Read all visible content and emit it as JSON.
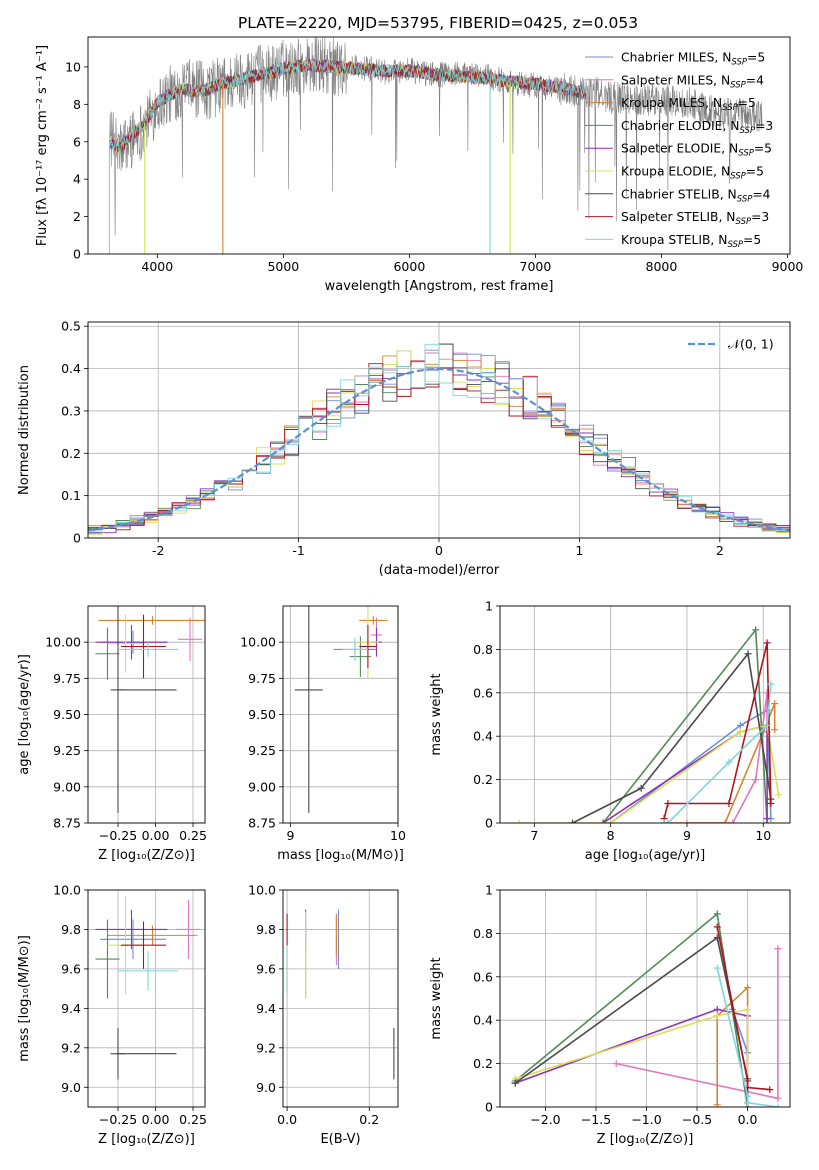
{
  "figure": {
    "suptitle": "PLATE=2220, MJD=53795, FIBERID=0425, z=0.053",
    "colors": {
      "Chabrier MILES": "#6f8fd0",
      "Salpeter MILES": "#e377c2",
      "Kroupa MILES": "#d98330",
      "Chabrier ELODIE": "#528a58",
      "Salpeter ELODIE": "#9131b8",
      "Kroupa ELODIE": "#d8e05a",
      "Chabrier STELIB": "#4a4a4a",
      "Salpeter STELIB": "#b0141e",
      "Kroupa STELIB": "#7ed6dc",
      "data": "#808080",
      "normal": "#5b8fd6"
    }
  },
  "chart_data": [
    {
      "id": "spectrum",
      "type": "line",
      "xlabel": "wavelength [Angstrom, rest frame]",
      "ylabel": "Flux [fλ 10⁻¹⁷ erg cm⁻² s⁻¹ A⁻¹]",
      "xlim": [
        3450,
        9020
      ],
      "ylim": [
        0,
        11.6
      ],
      "xticks": [
        4000,
        5000,
        6000,
        7000,
        8000,
        9000
      ],
      "yticks": [
        0,
        2,
        4,
        6,
        8,
        10
      ],
      "legend_position": "top-right",
      "legend": [
        {
          "label": "Chabrier MILES, N",
          "sub": "SSP",
          "tail": "=5"
        },
        {
          "label": "Salpeter MILES, N",
          "sub": "SSP",
          "tail": "=4"
        },
        {
          "label": "Kroupa MILES, N",
          "sub": "SSP",
          "tail": "=5"
        },
        {
          "label": "Chabrier ELODIE, N",
          "sub": "SSP",
          "tail": "=3"
        },
        {
          "label": "Salpeter ELODIE, N",
          "sub": "SSP",
          "tail": "=5"
        },
        {
          "label": "Kroupa ELODIE, N",
          "sub": "SSP",
          "tail": "=5"
        },
        {
          "label": "Chabrier STELIB, N",
          "sub": "SSP",
          "tail": "=4"
        },
        {
          "label": "Salpeter STELIB, N",
          "sub": "SSP",
          "tail": "=3"
        },
        {
          "label": "Kroupa STELIB, N",
          "sub": "SSP",
          "tail": "=5"
        }
      ],
      "data_envelope": {
        "x": [
          3620,
          3700,
          3800,
          3900,
          4000,
          4100,
          4200,
          4300,
          4400,
          4500,
          4600,
          4700,
          4800,
          4900,
          5000,
          5200,
          5400,
          5600,
          5800,
          6000,
          6200,
          6400,
          6600,
          6800,
          7000,
          7200,
          7400,
          7600,
          7800,
          8000,
          8200,
          8400,
          8600,
          8800
        ],
        "y": [
          6.3,
          5.5,
          6.2,
          6.8,
          8.0,
          8.5,
          8.9,
          8.8,
          8.7,
          9.0,
          9.2,
          9.4,
          9.6,
          9.6,
          9.9,
          10.1,
          10.0,
          10.0,
          9.7,
          9.8,
          9.6,
          9.6,
          9.5,
          9.2,
          9.0,
          8.8,
          8.7,
          8.4,
          8.3,
          8.2,
          8.1,
          7.6,
          7.5,
          7.4
        ]
      },
      "model_envelope": {
        "x": [
          3620,
          3700,
          3800,
          3900,
          4000,
          4100,
          4200,
          4300,
          4400,
          4500,
          4600,
          4700,
          4800,
          4900,
          5000,
          5200,
          5400,
          5600,
          5800,
          6000,
          6200,
          6400,
          6600,
          6800,
          7000,
          7200,
          7400
        ],
        "y": [
          6.0,
          5.6,
          6.4,
          7.0,
          8.1,
          8.5,
          8.8,
          8.7,
          8.8,
          9.1,
          9.2,
          9.4,
          9.6,
          9.7,
          9.9,
          10.1,
          10.0,
          9.9,
          9.8,
          9.8,
          9.6,
          9.5,
          9.4,
          9.2,
          9.1,
          8.9,
          8.6
        ]
      },
      "model_dropouts": [
        {
          "model": "Kroupa MILES",
          "x": 4520
        },
        {
          "model": "Kroupa STELIB",
          "x": 6640
        },
        {
          "model": "Kroupa ELODIE",
          "x": 6800
        },
        {
          "model": "Kroupa ELODIE",
          "x": 3900
        },
        {
          "model": "Kroupa STELIB",
          "x": 3620
        }
      ]
    },
    {
      "id": "residuals",
      "type": "line",
      "xlabel": "(data-model)/error",
      "ylabel": "Normed distribution",
      "xlim": [
        -2.5,
        2.5
      ],
      "ylim": [
        0,
        0.51
      ],
      "xticks": [
        -2,
        -1,
        0,
        1,
        2
      ],
      "yticks": [
        0.0,
        0.1,
        0.2,
        0.3,
        0.4,
        0.5
      ],
      "grid": true,
      "legend_position": "top-right",
      "legend_label": "𝒩(0, 1)",
      "series_note": "step histograms, bin width 0.1 from -2.5 to 2.5, one per model; dashed curve = standard normal"
    },
    {
      "id": "Z_age",
      "type": "scatter",
      "xlabel": "Z [log₁₀(Z/Z⊙)]",
      "ylabel": "age  [log₁₀(age/yr)]",
      "xlim": [
        -0.45,
        0.33
      ],
      "ylim": [
        8.75,
        10.25
      ],
      "xticks": [
        -0.25,
        0.0,
        0.25
      ],
      "xticklabels": [
        "−0.25",
        "0.00",
        "0.25"
      ],
      "yticks": [
        8.75,
        9.0,
        9.25,
        9.5,
        9.75,
        10.0
      ],
      "yticklabels": [
        "8.75",
        "9.00",
        "9.25",
        "9.50",
        "9.75",
        "10.00"
      ],
      "grid": true,
      "points": [
        {
          "model": "Chabrier MILES",
          "x": -0.15,
          "xerr": 0.22,
          "y": 10.0,
          "yerr": 0.08
        },
        {
          "model": "Salpeter MILES",
          "x": 0.23,
          "xerr": 0.08,
          "y": 10.02,
          "yerr": 0.15
        },
        {
          "model": "Kroupa MILES",
          "x": -0.02,
          "xerr": 0.36,
          "y": 10.15,
          "yerr": 0.03
        },
        {
          "model": "Chabrier ELODIE",
          "x": -0.32,
          "xerr": 0.08,
          "y": 9.92,
          "yerr": 0.18
        },
        {
          "model": "Salpeter ELODIE",
          "x": -0.16,
          "xerr": 0.24,
          "y": 10.0,
          "yerr": 0.12
        },
        {
          "model": "Kroupa ELODIE",
          "x": -0.2,
          "xerr": 0.12,
          "y": 9.99,
          "yerr": 0.2
        },
        {
          "model": "Chabrier STELIB",
          "x": -0.25,
          "xerr": 0.05,
          "y": 9.67,
          "yerr": 0.85
        },
        {
          "model": "Chabrier STELIB",
          "x": -0.06,
          "xerr": 0.2,
          "y": 9.67,
          "yerr": 0.0
        },
        {
          "model": "Salpeter STELIB",
          "x": -0.08,
          "xerr": 0.15,
          "y": 9.97,
          "yerr": 0.22
        },
        {
          "model": "Kroupa STELIB",
          "x": -0.05,
          "xerr": 0.2,
          "y": 9.95,
          "yerr": 0.05
        }
      ]
    },
    {
      "id": "mass_age",
      "type": "scatter",
      "xlabel": "mass [log₁₀(M/M⊙)]",
      "xlim": [
        8.93,
        10.0
      ],
      "ylim": [
        8.75,
        10.25
      ],
      "xticks": [
        9,
        10
      ],
      "yticks": [
        8.75,
        9.0,
        9.25,
        9.5,
        9.75,
        10.0
      ],
      "yticklabels": [
        "8.75",
        "9.00",
        "9.25",
        "9.50",
        "9.75",
        "10.00"
      ],
      "grid": true,
      "points": [
        {
          "model": "Chabrier MILES",
          "x": 9.6,
          "xerr": 0.2,
          "y": 9.95,
          "yerr": 0.05
        },
        {
          "model": "Salpeter MILES",
          "x": 9.8,
          "xerr": 0.05,
          "y": 10.05,
          "yerr": 0.12
        },
        {
          "model": "Kroupa MILES",
          "x": 9.77,
          "xerr": 0.13,
          "y": 10.15,
          "yerr": 0.03
        },
        {
          "model": "Chabrier ELODIE",
          "x": 9.65,
          "xerr": 0.1,
          "y": 9.9,
          "yerr": 0.14
        },
        {
          "model": "Salpeter ELODIE",
          "x": 9.8,
          "xerr": 0.05,
          "y": 10.0,
          "yerr": 0.1
        },
        {
          "model": "Kroupa ELODIE",
          "x": 9.72,
          "xerr": 0.1,
          "y": 10.0,
          "yerr": 0.25
        },
        {
          "model": "Chabrier STELIB",
          "x": 9.17,
          "xerr": 0.13,
          "y": 9.67,
          "yerr": 0.85
        },
        {
          "model": "Salpeter STELIB",
          "x": 9.72,
          "xerr": 0.08,
          "y": 9.97,
          "yerr": 0.15
        },
        {
          "model": "Kroupa STELIB",
          "x": 9.6,
          "xerr": 0.12,
          "y": 9.95,
          "yerr": 0.08
        }
      ]
    },
    {
      "id": "weight_age",
      "type": "line",
      "xlabel": "age  [log₁₀(age/yr)]",
      "ylabel": "mass weight",
      "xlim": [
        6.55,
        10.35
      ],
      "ylim": [
        0,
        1.0
      ],
      "xticks": [
        7,
        8,
        9,
        10
      ],
      "yticks": [
        0.0,
        0.2,
        0.4,
        0.6,
        0.8,
        1.0
      ],
      "grid": true,
      "series": [
        {
          "model": "Chabrier MILES",
          "x": [
            8.0,
            9.7,
            10.05,
            10.1
          ],
          "y": [
            0.0,
            0.45,
            0.52,
            0.02
          ]
        },
        {
          "model": "Salpeter MILES",
          "x": [
            9.0,
            9.6,
            9.9,
            10.05,
            10.05
          ],
          "y": [
            0.0,
            0.0,
            0.2,
            0.6,
            0.42
          ]
        },
        {
          "model": "Kroupa MILES",
          "x": [
            8.7,
            9.5,
            10.0,
            10.15,
            10.15
          ],
          "y": [
            0.0,
            0.0,
            0.42,
            0.55,
            0.43
          ]
        },
        {
          "model": "Chabrier ELODIE",
          "x": [
            7.9,
            9.9,
            10.05
          ],
          "y": [
            0.0,
            0.89,
            0.0
          ]
        },
        {
          "model": "Salpeter ELODIE",
          "x": [
            7.9,
            9.7,
            10.05,
            10.05
          ],
          "y": [
            0.0,
            0.42,
            0.45,
            0.02
          ]
        },
        {
          "model": "Kroupa ELODIE",
          "x": [
            6.8,
            8.0,
            9.7,
            10.05,
            10.2
          ],
          "y": [
            0.0,
            0.0,
            0.42,
            0.45,
            0.13
          ]
        },
        {
          "model": "Chabrier STELIB",
          "x": [
            7.5,
            8.4,
            9.8,
            10.1
          ],
          "y": [
            0.0,
            0.16,
            0.78,
            0.11
          ]
        },
        {
          "model": "Salpeter STELIB",
          "x": [
            8.7,
            8.75,
            9.55,
            10.05,
            10.1
          ],
          "y": [
            0.02,
            0.09,
            0.09,
            0.83,
            0.09
          ]
        },
        {
          "model": "Kroupa STELIB",
          "x": [
            8.7,
            8.75,
            9.55,
            10.05,
            10.1
          ],
          "y": [
            0.0,
            0.0,
            0.28,
            0.45,
            0.64
          ]
        }
      ]
    },
    {
      "id": "Z_mass",
      "type": "scatter",
      "xlabel": "Z [log₁₀(Z/Z⊙)]",
      "ylabel": "mass [log₁₀(M/M⊙)]",
      "xlim": [
        -0.45,
        0.33
      ],
      "ylim": [
        8.9,
        10.0
      ],
      "xticks": [
        -0.25,
        0.0,
        0.25
      ],
      "xticklabels": [
        "−0.25",
        "0.00",
        "0.25"
      ],
      "yticks": [
        9.0,
        9.2,
        9.4,
        9.6,
        9.8,
        10.0
      ],
      "yticklabels": [
        "9.0",
        "9.2",
        "9.4",
        "9.6",
        "9.8",
        "10.0"
      ],
      "grid": true,
      "points": [
        {
          "model": "Chabrier MILES",
          "x": -0.15,
          "xerr": 0.22,
          "y": 9.75,
          "yerr": 0.1
        },
        {
          "model": "Salpeter MILES",
          "x": 0.22,
          "xerr": 0.08,
          "y": 9.8,
          "yerr": 0.15
        },
        {
          "model": "Kroupa MILES",
          "x": -0.02,
          "xerr": 0.3,
          "y": 9.77,
          "yerr": 0.05
        },
        {
          "model": "Chabrier ELODIE",
          "x": -0.32,
          "xerr": 0.08,
          "y": 9.65,
          "yerr": 0.2
        },
        {
          "model": "Salpeter ELODIE",
          "x": -0.16,
          "xerr": 0.24,
          "y": 9.8,
          "yerr": 0.1
        },
        {
          "model": "Kroupa ELODIE",
          "x": -0.2,
          "xerr": 0.12,
          "y": 9.72,
          "yerr": 0.25
        },
        {
          "model": "Chabrier STELIB",
          "x": -0.25,
          "xerr": 0.05,
          "y": 9.17,
          "yerr": 0.13
        },
        {
          "model": "Chabrier STELIB",
          "x": -0.06,
          "xerr": 0.2,
          "y": 9.17,
          "yerr": 0.0
        },
        {
          "model": "Salpeter STELIB",
          "x": -0.08,
          "xerr": 0.15,
          "y": 9.72,
          "yerr": 0.12
        },
        {
          "model": "Kroupa STELIB",
          "x": -0.05,
          "xerr": 0.2,
          "y": 9.59,
          "yerr": 0.1
        }
      ]
    },
    {
      "id": "ebv_mass",
      "type": "scatter",
      "xlabel": "E(B-V)",
      "xlim": [
        -0.01,
        0.27
      ],
      "ylim": [
        8.9,
        10.0
      ],
      "xticks": [
        0.0,
        0.2
      ],
      "xticklabels": [
        "0.0",
        "0.2"
      ],
      "yticks": [
        9.0,
        9.2,
        9.4,
        9.6,
        9.8,
        10.0
      ],
      "yticklabels": [
        "9.0",
        "9.2",
        "9.4",
        "9.6",
        "9.8",
        "10.0"
      ],
      "grid": true,
      "points": [
        {
          "model": "Chabrier MILES",
          "x": 0.125,
          "y": 9.75,
          "yerr": 0.15
        },
        {
          "model": "Salpeter MILES",
          "x": 0.12,
          "y": 9.75,
          "yerr": 0.13
        },
        {
          "model": "Kroupa MILES",
          "x": 0.12,
          "y": 9.77,
          "yerr": 0.1
        },
        {
          "model": "Chabrier ELODIE",
          "x": 0.045,
          "y": 9.65,
          "yerr": 0.2
        },
        {
          "model": "Salpeter ELODIE",
          "x": 0.045,
          "y": 9.8,
          "yerr": 0.1
        },
        {
          "model": "Kroupa ELODIE",
          "x": 0.045,
          "y": 9.67,
          "yerr": 0.22
        },
        {
          "model": "Chabrier STELIB",
          "x": 0.26,
          "y": 9.17,
          "yerr": 0.13
        },
        {
          "model": "Salpeter STELIB",
          "x": 0.0,
          "y": 9.8,
          "yerr": 0.08
        },
        {
          "model": "Kroupa STELIB",
          "x": 0.0,
          "y": 9.59,
          "yerr": 0.12
        }
      ]
    },
    {
      "id": "weight_Z",
      "type": "line",
      "xlabel": "Z [log₁₀(Z/Z⊙)]",
      "ylabel": "mass weight",
      "xlim": [
        -2.45,
        0.42
      ],
      "ylim": [
        0,
        1.0
      ],
      "xticks": [
        -2.0,
        -1.5,
        -1.0,
        -0.5,
        0.0
      ],
      "xticklabels": [
        "−2.0",
        "−1.5",
        "−1.0",
        "−0.5",
        "0.0"
      ],
      "yticks": [
        0.0,
        0.2,
        0.4,
        0.6,
        0.8,
        1.0
      ],
      "grid": true,
      "series": [
        {
          "model": "Chabrier MILES",
          "x": [
            -0.15,
            0.0,
            0.0
          ],
          "y": [
            0.45,
            0.25,
            0.02
          ]
        },
        {
          "model": "Salpeter MILES",
          "x": [
            -1.3,
            0.3,
            0.3
          ],
          "y": [
            0.2,
            0.04,
            0.73
          ]
        },
        {
          "model": "Kroupa MILES",
          "x": [
            -0.3,
            -0.3,
            0.0,
            0.0
          ],
          "y": [
            0.01,
            0.42,
            0.55,
            0.02
          ]
        },
        {
          "model": "Chabrier ELODIE",
          "x": [
            -2.3,
            -0.3,
            0.0
          ],
          "y": [
            0.12,
            0.89,
            0.0
          ]
        },
        {
          "model": "Salpeter ELODIE",
          "x": [
            -2.3,
            -0.3,
            0.0,
            0.0
          ],
          "y": [
            0.11,
            0.45,
            0.42,
            0.02
          ]
        },
        {
          "model": "Kroupa ELODIE",
          "x": [
            -2.3,
            -0.3,
            0.0,
            0.0
          ],
          "y": [
            0.13,
            0.42,
            0.45,
            0.13
          ]
        },
        {
          "model": "Chabrier STELIB",
          "x": [
            -2.3,
            -0.3,
            0.0
          ],
          "y": [
            0.11,
            0.78,
            0.13
          ]
        },
        {
          "model": "Salpeter STELIB",
          "x": [
            -0.3,
            0.0,
            0.0,
            0.22
          ],
          "y": [
            0.83,
            0.12,
            0.09,
            0.08
          ]
        },
        {
          "model": "Kroupa STELIB",
          "x": [
            -0.3,
            0.0,
            0.0,
            0.3
          ],
          "y": [
            0.64,
            0.05,
            0.02,
            0.0
          ]
        }
      ]
    }
  ]
}
